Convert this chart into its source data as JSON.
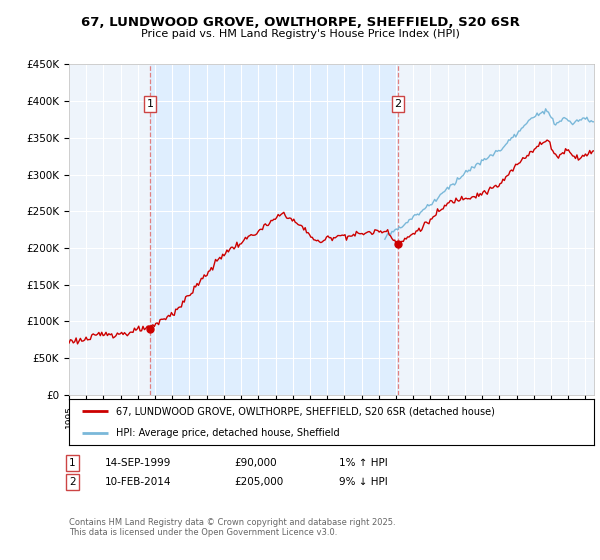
{
  "title": "67, LUNDWOOD GROVE, OWLTHORPE, SHEFFIELD, S20 6SR",
  "subtitle": "Price paid vs. HM Land Registry's House Price Index (HPI)",
  "ylabel_ticks": [
    "£0",
    "£50K",
    "£100K",
    "£150K",
    "£200K",
    "£250K",
    "£300K",
    "£350K",
    "£400K",
    "£450K"
  ],
  "ylim": [
    0,
    450000
  ],
  "ytick_vals": [
    0,
    50000,
    100000,
    150000,
    200000,
    250000,
    300000,
    350000,
    400000,
    450000
  ],
  "xmin": 1995.0,
  "xmax": 2025.5,
  "sale1_x": 1999.71,
  "sale1_y": 90000,
  "sale2_x": 2014.12,
  "sale2_y": 205000,
  "vline_color": "#e08080",
  "shade_color": "#ddeeff",
  "legend_line1": "67, LUNDWOOD GROVE, OWLTHORPE, SHEFFIELD, S20 6SR (detached house)",
  "legend_line2": "HPI: Average price, detached house, Sheffield",
  "footer": "Contains HM Land Registry data © Crown copyright and database right 2025.\nThis data is licensed under the Open Government Licence v3.0.",
  "hpi_color": "#7ab8d9",
  "price_color": "#cc0000",
  "background_color": "#ffffff",
  "grid_color": "#cccccc",
  "chart_bg": "#f0f4ff"
}
